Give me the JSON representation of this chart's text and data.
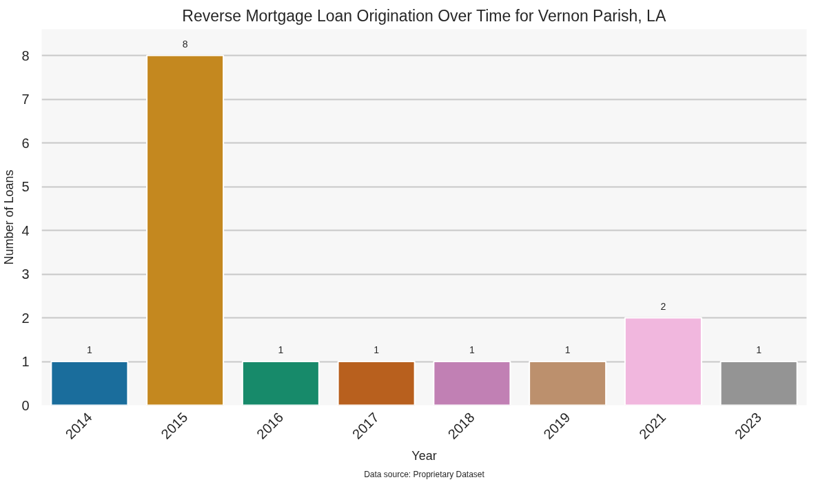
{
  "chart_data": {
    "type": "bar",
    "title": "Reverse Mortgage Loan Origination Over Time for Vernon Parish, LA",
    "xlabel": "Year",
    "ylabel": "Number of Loans",
    "categories": [
      "2014",
      "2015",
      "2016",
      "2017",
      "2018",
      "2019",
      "2021",
      "2023"
    ],
    "values": [
      1,
      8,
      1,
      1,
      1,
      1,
      2,
      1
    ],
    "colors": [
      "#1a6d9c",
      "#c4881f",
      "#178a6a",
      "#b8601e",
      "#c180b4",
      "#bc906d",
      "#f1b7de",
      "#949494"
    ],
    "ylim": [
      0,
      8.6
    ],
    "yticks": [
      0,
      1,
      2,
      3,
      4,
      5,
      6,
      7,
      8
    ],
    "grid": "y",
    "data_labels": true,
    "annotations": [
      "Data source: Proprietary Dataset"
    ]
  }
}
